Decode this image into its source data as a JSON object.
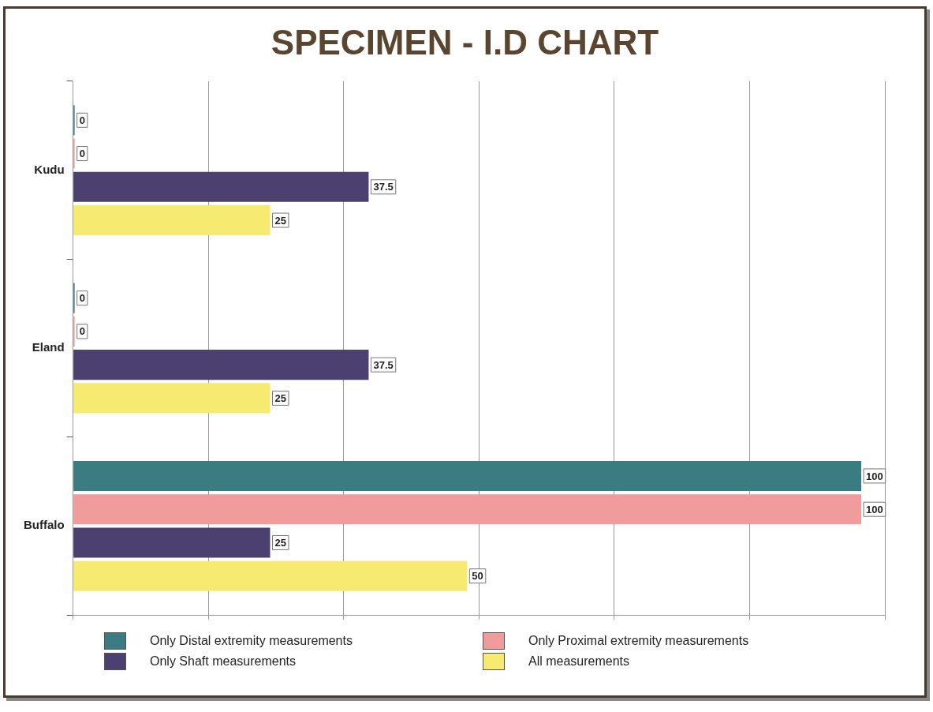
{
  "chart_data": {
    "type": "bar",
    "orientation": "horizontal",
    "title": "SPECIMEN - I.D CHART",
    "categories": [
      "Kudu",
      "Eland",
      "Buffalo"
    ],
    "series": [
      {
        "name": "Only Distal extremity measurements",
        "color": "#3b7b82",
        "values": [
          0,
          0,
          100
        ]
      },
      {
        "name": "Only Proximal extremity measurements",
        "color": "#f09c9c",
        "values": [
          0,
          0,
          100
        ]
      },
      {
        "name": "Only Shaft measurements",
        "color": "#4b406f",
        "values": [
          37.5,
          37.5,
          25
        ]
      },
      {
        "name": "All measurements",
        "color": "#f6ea70",
        "values": [
          25,
          25,
          50
        ]
      }
    ],
    "xlim": [
      0,
      103
    ],
    "xticks": [
      {
        "value": 0,
        "label": null
      },
      {
        "value": 17.17,
        "label": null
      },
      {
        "value": 34.33,
        "label": null
      },
      {
        "value": 51.5,
        "label": null
      },
      {
        "value": 68.67,
        "label": null
      },
      {
        "value": 85.83,
        "label": null
      },
      {
        "value": 103,
        "label": null
      }
    ],
    "tick_labels": "y",
    "grid": "x",
    "legend": "bottom",
    "data_labels": true
  }
}
